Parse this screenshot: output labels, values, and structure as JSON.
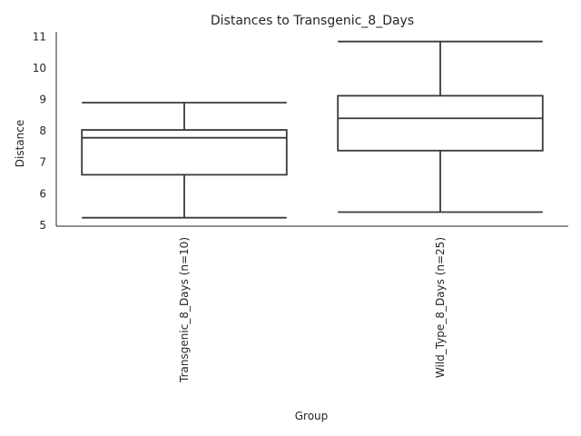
{
  "chart_data": {
    "type": "box",
    "title": "Distances to Transgenic_8_Days",
    "xlabel": "Group",
    "ylabel": "Distance",
    "ylim": [
      4.95,
      11.15
    ],
    "yticks": [
      5,
      6,
      7,
      8,
      9,
      10,
      11
    ],
    "grid": false,
    "legend": "none",
    "categories": [
      "Transgenic_8_Days (n=10)",
      "Wild_Type_8_Days (n=25)"
    ],
    "boxes": [
      {
        "whisker_low": 5.22,
        "q1": 6.59,
        "median": 7.77,
        "q3": 8.02,
        "whisker_high": 8.89
      },
      {
        "whisker_low": 5.4,
        "q1": 7.36,
        "median": 8.39,
        "q3": 9.11,
        "whisker_high": 10.84
      }
    ],
    "colors": {
      "line": "#3a3a3a",
      "box_fill": "#ffffff",
      "axis": "#262626"
    }
  }
}
